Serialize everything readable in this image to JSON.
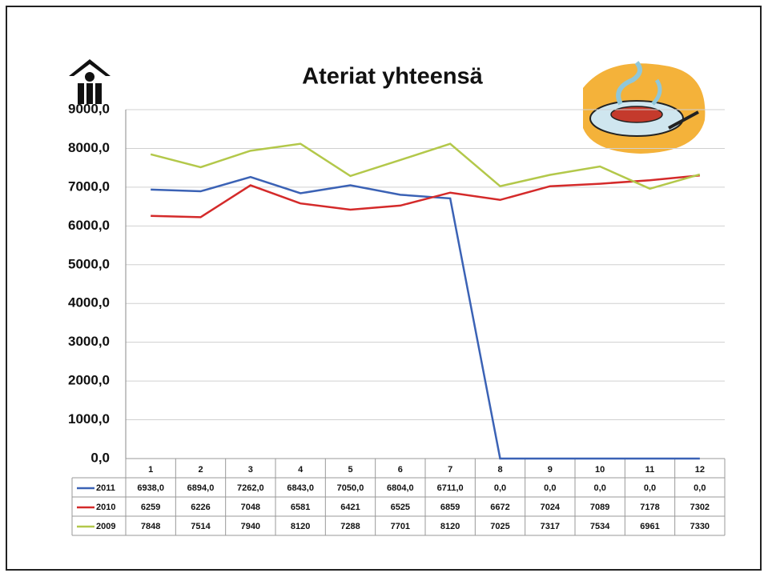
{
  "chart_data": {
    "type": "line",
    "title": "Ateriat yhteensä",
    "categories": [
      "1",
      "2",
      "3",
      "4",
      "5",
      "6",
      "7",
      "8",
      "9",
      "10",
      "11",
      "12"
    ],
    "series": [
      {
        "name": "2011",
        "color": "#3b62b5",
        "values": [
          6938,
          6894,
          7262,
          6843,
          7050,
          6804,
          6711,
          0,
          0,
          0,
          0,
          0
        ],
        "value_labels": [
          "6938,0",
          "6894,0",
          "7262,0",
          "6843,0",
          "7050,0",
          "6804,0",
          "6711,0",
          "0,0",
          "0,0",
          "0,0",
          "0,0",
          "0,0"
        ]
      },
      {
        "name": "2010",
        "color": "#d42a2a",
        "values": [
          6259,
          6226,
          7048,
          6581,
          6421,
          6525,
          6859,
          6672,
          7024,
          7089,
          7178,
          7302
        ]
      },
      {
        "name": "2009",
        "color": "#b3c84a",
        "values": [
          7848,
          7514,
          7940,
          8120,
          7288,
          7701,
          8120,
          7025,
          7317,
          7534,
          6961,
          7330
        ]
      }
    ],
    "ylim": [
      0,
      9000
    ],
    "yticks": [
      {
        "value": 0,
        "label": "0,0"
      },
      {
        "value": 1000,
        "label": "1000,0"
      },
      {
        "value": 2000,
        "label": "2000,0"
      },
      {
        "value": 3000,
        "label": "3000,0"
      },
      {
        "value": 4000,
        "label": "4000,0"
      },
      {
        "value": 5000,
        "label": "5000,0"
      },
      {
        "value": 6000,
        "label": "6000,0"
      },
      {
        "value": 7000,
        "label": "7000,0"
      },
      {
        "value": 8000,
        "label": "8000,0"
      },
      {
        "value": 9000,
        "label": "9000,0"
      }
    ],
    "grid": true
  }
}
